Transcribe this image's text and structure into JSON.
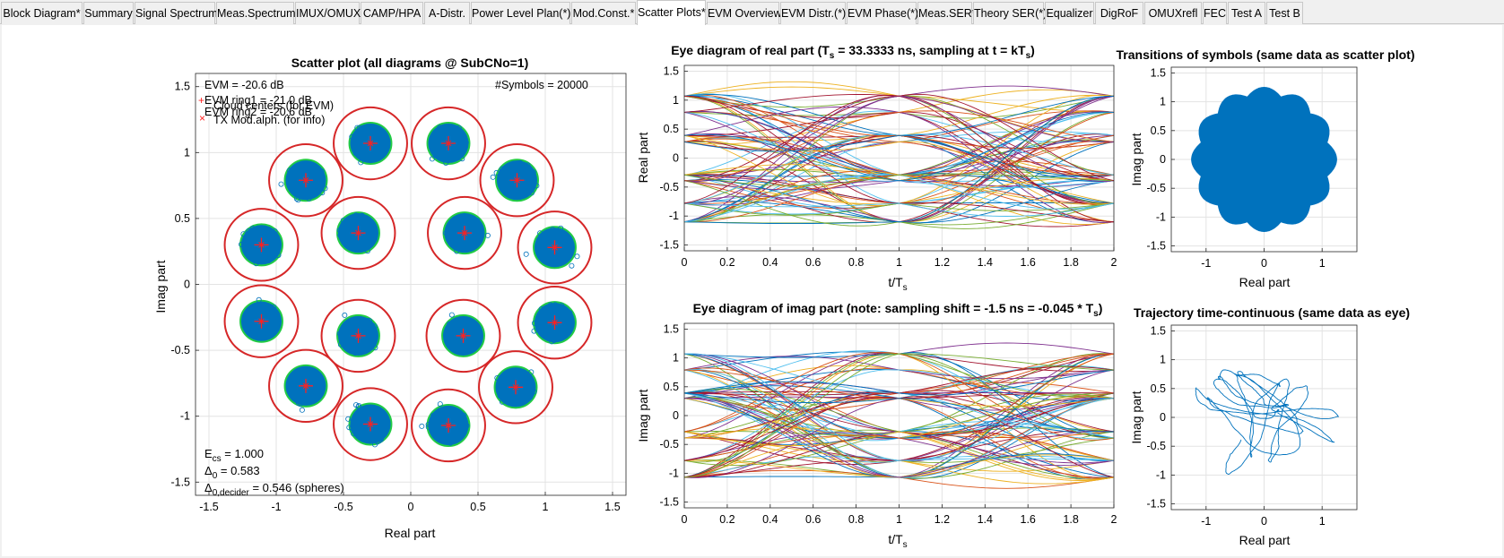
{
  "tabs": [
    {
      "label": "Block Diagram*",
      "active": false
    },
    {
      "label": "Summary",
      "active": false
    },
    {
      "label": "Signal Spectrum",
      "active": false
    },
    {
      "label": "Meas.Spectrum",
      "active": false
    },
    {
      "label": "IMUX/OMUX",
      "active": false
    },
    {
      "label": "CAMP/HPA",
      "active": false
    },
    {
      "label": "A-Distr.",
      "active": false
    },
    {
      "label": "Power Level Plan(*)",
      "active": false
    },
    {
      "label": "Mod.Const.*",
      "active": false
    },
    {
      "label": "Scatter Plots*",
      "active": true
    },
    {
      "label": "EVM Overview",
      "active": false
    },
    {
      "label": "EVM Distr.(*)",
      "active": false
    },
    {
      "label": "EVM Phase(*)",
      "active": false
    },
    {
      "label": "Meas.SER*",
      "active": false
    },
    {
      "label": "Theory SER(*)",
      "active": false
    },
    {
      "label": "Equalizer",
      "active": false
    },
    {
      "label": "DigRoF",
      "active": false
    },
    {
      "label": "OMUXrefl",
      "active": false
    },
    {
      "label": "FEC",
      "active": false
    },
    {
      "label": "Test A",
      "active": false
    },
    {
      "label": "Test B",
      "active": false
    }
  ],
  "colors": {
    "scatter": "#0072bd",
    "ring_red": "#d62728",
    "ring_green": "#22cc44",
    "marker": "#ff2020",
    "grid": "#e6e6e6"
  },
  "scatter": {
    "title": "Scatter plot (all diagrams @ SubCNo=1)",
    "xlabel": "Real part",
    "ylabel": "Imag part",
    "xticks": [
      "-1.5",
      "-1",
      "-0.5",
      "0",
      "0.5",
      "1",
      "1.5"
    ],
    "yticks": [
      "1.5",
      "1",
      "0.5",
      "0",
      "-0.5",
      "-1",
      "-1.5"
    ],
    "evm": "EVM = -20.6 dB",
    "legend": [
      "Cloud centers (for EVM)",
      "EVM ring1 = -21.0 dB",
      "EVM ring2 = -20.6 dB",
      "TX Mod.alph. (for info)"
    ],
    "symbols": "#Symbols = 20000",
    "ecs_label": "E",
    "ecs_sub": "cs",
    "ecs_value": " = 1.000",
    "delta0_label": "Δ",
    "delta0_sub": "0",
    "delta0_value": "   = 0.583",
    "delta0d_label": "Δ",
    "delta0d_sub": "0,decider",
    "delta0d_value": " = 0.546 (spheres)",
    "chart_data": {
      "type": "scatter",
      "xlim": [
        -1.5,
        1.5
      ],
      "ylim": [
        -1.5,
        1.5
      ],
      "grid": true,
      "constellation": [
        {
          "x": -0.3,
          "y": 1.07
        },
        {
          "x": 0.28,
          "y": 1.07
        },
        {
          "x": -0.78,
          "y": 0.79
        },
        {
          "x": 0.79,
          "y": 0.79
        },
        {
          "x": -0.39,
          "y": 0.39
        },
        {
          "x": 0.4,
          "y": 0.39
        },
        {
          "x": -1.11,
          "y": 0.3
        },
        {
          "x": 1.07,
          "y": 0.28
        },
        {
          "x": -1.11,
          "y": -0.28
        },
        {
          "x": 1.07,
          "y": -0.29
        },
        {
          "x": -0.39,
          "y": -0.39
        },
        {
          "x": 0.39,
          "y": -0.39
        },
        {
          "x": -0.78,
          "y": -0.77
        },
        {
          "x": 0.78,
          "y": -0.78
        },
        {
          "x": -0.3,
          "y": -1.06
        },
        {
          "x": 0.28,
          "y": -1.07
        }
      ]
    }
  },
  "eye_real": {
    "title_pre": "Eye diagram of real part   (T",
    "title_sub": "s",
    "title_mid": " = 33.3333 ns, sampling at t = kT",
    "title_sub2": "s",
    "title_post": ")",
    "xlabel": "t/T",
    "xlabel_sub": "s",
    "ylabel": "Real part",
    "xticks": [
      "0",
      "0.2",
      "0.4",
      "0.6",
      "0.8",
      "1",
      "1.2",
      "1.4",
      "1.6",
      "1.8",
      "2"
    ],
    "yticks": [
      "1.5",
      "1",
      "0.5",
      "0",
      "-0.5",
      "-1",
      "-1.5"
    ],
    "chart_data": {
      "type": "line",
      "xlim": [
        0,
        2
      ],
      "ylim": [
        -1.6,
        1.6
      ],
      "grid": true,
      "levels": [
        -1.1,
        -0.78,
        -0.39,
        -0.29,
        0.28,
        0.39,
        0.79,
        1.07
      ]
    }
  },
  "eye_imag": {
    "title_pre": "Eye diagram of imag part   (note: sampling shift = -1.5 ns = -0.045 * T",
    "title_sub": "s",
    "title_post": ")",
    "xlabel": "t/T",
    "xlabel_sub": "s",
    "ylabel": "Imag part",
    "xticks": [
      "0",
      "0.2",
      "0.4",
      "0.6",
      "0.8",
      "1",
      "1.2",
      "1.4",
      "1.6",
      "1.8",
      "2"
    ],
    "yticks": [
      "1.5",
      "1",
      "0.5",
      "0",
      "-0.5",
      "-1",
      "-1.5"
    ],
    "chart_data": {
      "type": "line",
      "xlim": [
        0,
        2
      ],
      "ylim": [
        -1.6,
        1.6
      ],
      "grid": true,
      "levels": [
        -1.07,
        -0.78,
        -0.39,
        -0.28,
        0.3,
        0.39,
        0.79,
        1.07
      ]
    }
  },
  "transitions": {
    "title": "Transitions of symbols  (same data as scatter plot)",
    "xlabel": "Real part",
    "ylabel": "Imag part",
    "xticks": [
      "-1",
      "0",
      "1"
    ],
    "yticks": [
      "1.5",
      "1",
      "0.5",
      "0",
      "-0.5",
      "-1",
      "-1.5"
    ],
    "chart_data": {
      "type": "area",
      "xlim": [
        -1.6,
        1.6
      ],
      "ylim": [
        -1.6,
        1.6
      ],
      "lobes": 12,
      "outer_radius": 1.25,
      "inner_radius": 1.12
    }
  },
  "trajectory": {
    "title": "Trajectory time-continuous  (same data as eye)",
    "xlabel": "Real part",
    "ylabel": "Imag part",
    "xticks": [
      "-1",
      "0",
      "1"
    ],
    "yticks": [
      "1.5",
      "1",
      "0.5",
      "0",
      "-0.5",
      "-1",
      "-1.5"
    ],
    "chart_data": {
      "type": "line",
      "xlim": [
        -1.6,
        1.6
      ],
      "ylim": [
        -1.6,
        1.6
      ],
      "max_radius": 1.3
    }
  }
}
